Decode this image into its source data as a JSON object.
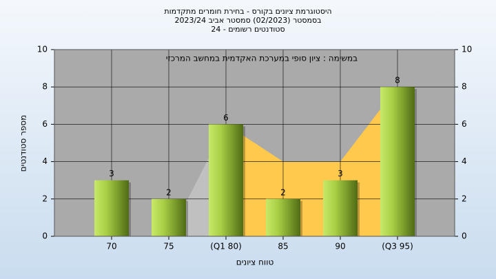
{
  "chart_data": {
    "type": "bar",
    "title": [
      "היסטוגרמת ציונים בקורס - בחירת חומרים מתקדמות",
      "בסמסטר  (02/2023)  סמסטר אביב 2023/24",
      "סטודנטים רשומים - 24"
    ],
    "annotation": "במשימה : ציון סופי במערכת האקדמית במחשב המרכזי",
    "x_label": "טווח ציונים",
    "y_label": "מספר סטודנטים",
    "categories": [
      "70",
      "75",
      "(Q1 80)",
      "85",
      "90",
      "(Q3 95)"
    ],
    "values": [
      3,
      2,
      6,
      2,
      3,
      8
    ],
    "color": "#9acd32",
    "whisker_area": {
      "color": "#c0c0c0",
      "values": [
        null,
        0,
        6,
        null,
        null,
        null
      ]
    },
    "box_area": {
      "color": "#ffc94d",
      "values": [
        null,
        null,
        6,
        4,
        4,
        8
      ]
    },
    "ylim": [
      0,
      10
    ],
    "yticks": [
      0,
      2,
      4,
      6,
      8,
      10
    ],
    "grid": true
  }
}
